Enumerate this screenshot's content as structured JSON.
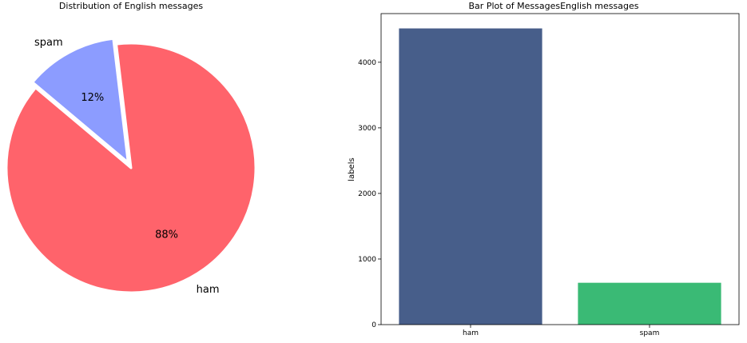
{
  "chart_data": [
    {
      "type": "pie",
      "title": "Distribution of English messages",
      "labels": [
        "ham",
        "spam"
      ],
      "values": [
        88,
        12
      ],
      "value_labels": [
        "88%",
        "12%"
      ],
      "colors": [
        "#ff636b",
        "#8c9cff"
      ],
      "explode": [
        0,
        0.05
      ],
      "edge_color": "#ffffff"
    },
    {
      "type": "bar",
      "title": "Bar Plot of MessagesEnglish messages",
      "categories": [
        "ham",
        "spam"
      ],
      "values": [
        4516,
        638
      ],
      "colors": [
        "#475e8a",
        "#3aba75"
      ],
      "xlabel": "",
      "ylabel": "labels",
      "ylim": [
        0,
        4742
      ],
      "yticks": [
        0,
        1000,
        2000,
        3000,
        4000
      ],
      "grid": false
    }
  ]
}
